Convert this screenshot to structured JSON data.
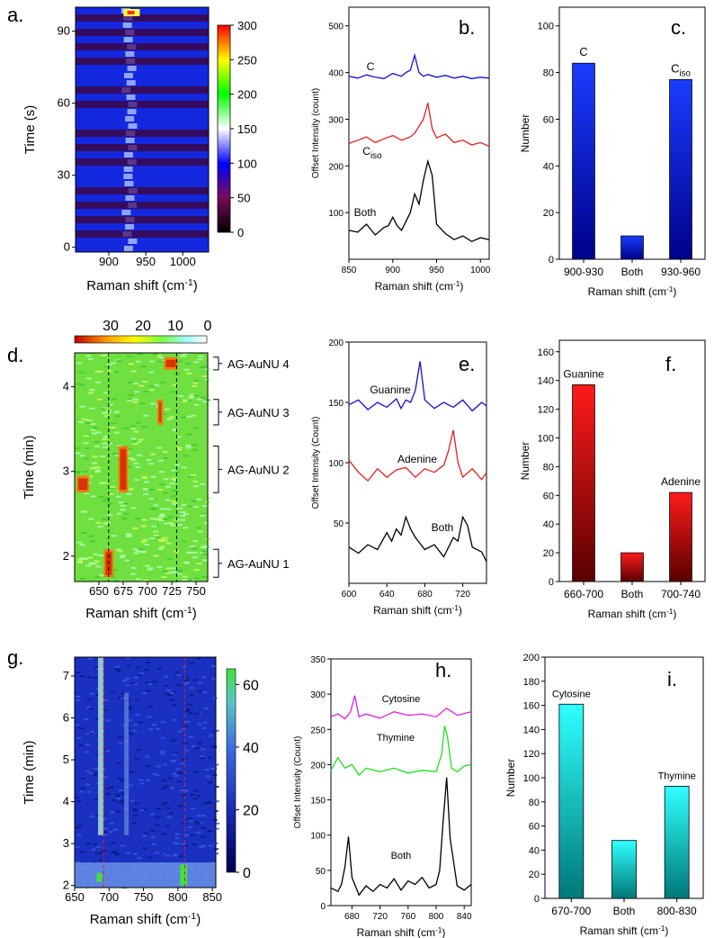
{
  "panel_labels": [
    "a.",
    "b.",
    "c.",
    "d.",
    "e.",
    "f.",
    "g.",
    "h.",
    "i."
  ],
  "chart_data": [
    {
      "id": "a",
      "type": "heatmap",
      "xlabel": "Raman shift (cm⁻¹)",
      "ylabel": "Time (s)",
      "xlim": [
        855,
        1035
      ],
      "ylim": [
        -2,
        100
      ],
      "xticks": [
        900,
        950,
        1000
      ],
      "yticks": [
        0,
        30,
        60,
        90
      ],
      "colorbar": {
        "min": 0,
        "max": 300,
        "ticks": [
          0,
          50,
          100,
          150,
          200,
          250,
          300
        ],
        "colors": [
          "#000000",
          "#7a0a5a",
          "#0000ff",
          "#ffffff",
          "#00ff00",
          "#ffff00",
          "#ff0000"
        ]
      },
      "peak_bands": [
        925,
        940
      ]
    },
    {
      "id": "b",
      "type": "line",
      "xlabel": "Raman shift (cm⁻¹)",
      "ylabel": "Offset Intensity (count)",
      "xlim": [
        850,
        1010
      ],
      "ylim": [
        0,
        540
      ],
      "xticks": [
        850,
        900,
        950,
        1000
      ],
      "yticks": [
        100,
        200,
        300,
        400,
        500
      ],
      "series": [
        {
          "name": "C",
          "color": "#1010d0",
          "x": [
            850,
            860,
            870,
            880,
            890,
            900,
            910,
            915,
            920,
            925,
            930,
            935,
            940,
            950,
            960,
            970,
            980,
            990,
            1000,
            1010
          ],
          "y": [
            392,
            388,
            395,
            390,
            387,
            398,
            392,
            400,
            405,
            437,
            400,
            392,
            396,
            390,
            394,
            388,
            392,
            387,
            390,
            388
          ]
        },
        {
          "name": "Ciso",
          "color": "#e02020",
          "x": [
            850,
            860,
            870,
            880,
            890,
            900,
            910,
            920,
            925,
            930,
            935,
            940,
            945,
            950,
            960,
            970,
            980,
            990,
            1000,
            1010
          ],
          "y": [
            248,
            255,
            262,
            250,
            258,
            265,
            255,
            262,
            270,
            285,
            300,
            335,
            280,
            260,
            268,
            250,
            255,
            245,
            250,
            242
          ]
        },
        {
          "name": "Both",
          "color": "#000000",
          "x": [
            850,
            860,
            870,
            880,
            890,
            895,
            900,
            905,
            910,
            920,
            925,
            930,
            935,
            940,
            945,
            950,
            960,
            970,
            980,
            990,
            1000,
            1010
          ],
          "y": [
            62,
            58,
            75,
            52,
            68,
            72,
            90,
            72,
            62,
            100,
            140,
            118,
            170,
            210,
            180,
            75,
            55,
            42,
            50,
            38,
            46,
            42
          ]
        }
      ],
      "labels": [
        "C",
        "C",
        "iso",
        "Both"
      ]
    },
    {
      "id": "c",
      "type": "bar",
      "xlabel": "Raman shift (cm⁻¹)",
      "ylabel": "Number",
      "categories": [
        "900-930",
        "Both",
        "930-960"
      ],
      "values": [
        84,
        10,
        77
      ],
      "bar_labels": [
        "C",
        "",
        "C"
      ],
      "bar_label_sub": [
        "",
        "",
        "iso"
      ],
      "ylim": [
        0,
        108
      ],
      "yticks": [
        0,
        20,
        40,
        60,
        80,
        100
      ],
      "colors": [
        "#1a3cff",
        "#00008a"
      ]
    },
    {
      "id": "d",
      "type": "heatmap",
      "xlabel": "Raman shift (cm⁻¹)",
      "ylabel": "Time (min)",
      "xlim": [
        625,
        762
      ],
      "ylim": [
        1.7,
        4.4
      ],
      "xticks": [
        650,
        675,
        700,
        725,
        750
      ],
      "yticks": [
        2,
        3,
        4
      ],
      "colorbar": {
        "ticks": [
          30,
          20,
          10,
          0
        ],
        "colors": [
          "#c00000",
          "#ffa000",
          "#ffff00",
          "#80ff40",
          "#a0ffff",
          "#ffffff"
        ]
      },
      "dashed_lines": [
        660,
        730
      ],
      "brackets": [
        {
          "label": "AG-AuNU 4",
          "y0": 4.2,
          "y1": 4.35
        },
        {
          "label": "AG-AuNU 3",
          "y0": 3.55,
          "y1": 3.85
        },
        {
          "label": "AG-AuNU 2",
          "y0": 2.75,
          "y1": 3.3
        },
        {
          "label": "AG-AuNU 1",
          "y0": 1.75,
          "y1": 2.08
        }
      ]
    },
    {
      "id": "e",
      "type": "line",
      "xlabel": "Raman shift (cm⁻¹)",
      "ylabel": "Offset Intensity (Count)",
      "xlim": [
        600,
        745
      ],
      "ylim": [
        0,
        200
      ],
      "xticks": [
        600,
        640,
        680,
        720
      ],
      "yticks": [
        50,
        100,
        150,
        200
      ],
      "series": [
        {
          "name": "Guanine",
          "color": "#1010d0",
          "x": [
            600,
            610,
            620,
            630,
            640,
            650,
            655,
            660,
            665,
            670,
            675,
            680,
            690,
            700,
            710,
            720,
            730,
            740,
            745
          ],
          "y": [
            148,
            152,
            144,
            150,
            146,
            153,
            145,
            152,
            150,
            160,
            184,
            152,
            145,
            150,
            146,
            152,
            143,
            150,
            147
          ]
        },
        {
          "name": "Adenine",
          "color": "#e02020",
          "x": [
            600,
            610,
            620,
            630,
            640,
            650,
            660,
            670,
            680,
            690,
            700,
            705,
            710,
            715,
            720,
            730,
            740,
            745
          ],
          "y": [
            102,
            92,
            85,
            95,
            88,
            94,
            96,
            88,
            95,
            92,
            98,
            110,
            127,
            100,
            88,
            95,
            86,
            92
          ]
        },
        {
          "name": "Both",
          "color": "#000000",
          "x": [
            600,
            610,
            620,
            630,
            640,
            645,
            650,
            655,
            660,
            665,
            670,
            680,
            690,
            700,
            710,
            715,
            720,
            725,
            730,
            740,
            745
          ],
          "y": [
            30,
            25,
            32,
            28,
            42,
            35,
            45,
            40,
            55,
            45,
            38,
            28,
            32,
            22,
            38,
            35,
            55,
            48,
            30,
            26,
            18
          ]
        }
      ]
    },
    {
      "id": "f",
      "type": "bar",
      "xlabel": "Raman shift (cm⁻¹)",
      "ylabel": "Number",
      "categories": [
        "660-700",
        "Both",
        "700-740"
      ],
      "values": [
        137,
        20,
        62
      ],
      "bar_labels": [
        "Guanine",
        "",
        "Adenine"
      ],
      "ylim": [
        0,
        168
      ],
      "yticks": [
        0,
        20,
        40,
        60,
        80,
        100,
        120,
        140,
        160
      ],
      "colors": [
        "#ff1a1a",
        "#5a0000"
      ]
    },
    {
      "id": "g",
      "type": "heatmap",
      "xlabel": "Raman shift (cm⁻¹)",
      "ylabel": "Time (min)",
      "xlim": [
        650,
        855
      ],
      "ylim": [
        1.95,
        7.45
      ],
      "xticks": [
        650,
        700,
        750,
        800,
        850
      ],
      "yticks": [
        2,
        3,
        4,
        5,
        6,
        7
      ],
      "colorbar": {
        "min": 0,
        "max": 65,
        "ticks": [
          0,
          20,
          40,
          60
        ],
        "colors": [
          "#000050",
          "#1a2ab0",
          "#3a6ae0",
          "#5ac8c0",
          "#40e040"
        ]
      },
      "dashed_lines": [
        692,
        810
      ]
    },
    {
      "id": "h",
      "type": "line",
      "xlabel": "Raman shift (cm⁻¹)",
      "ylabel": "Offset Intensity (Count)",
      "xlim": [
        650,
        850
      ],
      "ylim": [
        0,
        350
      ],
      "xticks": [
        680,
        720,
        760,
        800,
        840
      ],
      "yticks": [
        0,
        50,
        100,
        150,
        200,
        250,
        300,
        350
      ],
      "series": [
        {
          "name": "Cytosine",
          "color": "#e020e0",
          "x": [
            650,
            660,
            670,
            678,
            684,
            690,
            700,
            720,
            740,
            760,
            780,
            800,
            815,
            830,
            850
          ],
          "y": [
            268,
            272,
            265,
            275,
            298,
            268,
            272,
            266,
            275,
            270,
            272,
            268,
            280,
            270,
            275
          ]
        },
        {
          "name": "Thymine",
          "color": "#20e020",
          "x": [
            650,
            660,
            670,
            680,
            690,
            700,
            720,
            740,
            760,
            780,
            800,
            808,
            812,
            816,
            822,
            830,
            840,
            850
          ],
          "y": [
            192,
            210,
            195,
            200,
            185,
            195,
            190,
            195,
            188,
            192,
            190,
            215,
            255,
            240,
            195,
            190,
            198,
            200
          ]
        },
        {
          "name": "Both",
          "color": "#000000",
          "x": [
            650,
            660,
            665,
            670,
            675,
            680,
            690,
            700,
            710,
            720,
            730,
            740,
            750,
            760,
            770,
            780,
            790,
            800,
            805,
            810,
            815,
            820,
            830,
            840,
            850
          ],
          "y": [
            25,
            20,
            30,
            55,
            98,
            40,
            15,
            28,
            20,
            30,
            25,
            38,
            22,
            35,
            30,
            40,
            25,
            30,
            50,
            120,
            182,
            95,
            28,
            22,
            30
          ]
        }
      ]
    },
    {
      "id": "i",
      "type": "bar",
      "xlabel": "Raman shift (cm⁻¹)",
      "ylabel": "Number",
      "categories": [
        "670-700",
        "Both",
        "800-830"
      ],
      "values": [
        161,
        48,
        93
      ],
      "bar_labels": [
        "Cytosine",
        "",
        "Thymine"
      ],
      "ylim": [
        0,
        200
      ],
      "yticks": [
        0,
        20,
        40,
        60,
        80,
        100,
        120,
        140,
        160,
        180,
        200
      ],
      "colors": [
        "#30ffff",
        "#007878"
      ]
    }
  ]
}
